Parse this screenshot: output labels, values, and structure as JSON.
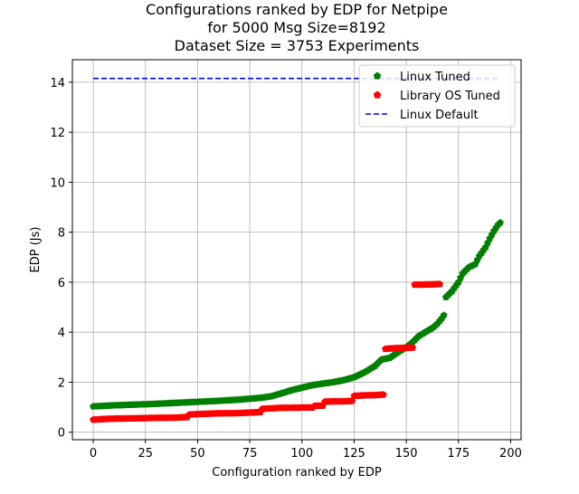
{
  "chart_data": {
    "type": "scatter",
    "title_lines": [
      "Configurations ranked by EDP for Netpipe",
      "for 5000 Msg Size=8192",
      "Dataset Size = 3753 Experiments"
    ],
    "xlabel": "Configuration ranked by EDP",
    "ylabel": "EDP (Js)",
    "xlim": [
      -10,
      205
    ],
    "ylim": [
      -0.3,
      14.9
    ],
    "xticks": [
      0,
      25,
      50,
      75,
      100,
      125,
      150,
      175,
      200
    ],
    "yticks": [
      0,
      2,
      4,
      6,
      8,
      10,
      12,
      14
    ],
    "grid": true,
    "legend_position": "top-right",
    "series": [
      {
        "name": "Linux Tuned",
        "color": "#008000",
        "marker": "pentagon",
        "points": [
          [
            0,
            1.03
          ],
          [
            10,
            1.07
          ],
          [
            20,
            1.1
          ],
          [
            30,
            1.13
          ],
          [
            40,
            1.17
          ],
          [
            50,
            1.21
          ],
          [
            60,
            1.25
          ],
          [
            70,
            1.3
          ],
          [
            80,
            1.37
          ],
          [
            85,
            1.43
          ],
          [
            90,
            1.55
          ],
          [
            95,
            1.68
          ],
          [
            100,
            1.78
          ],
          [
            105,
            1.88
          ],
          [
            110,
            1.94
          ],
          [
            115,
            2.0
          ],
          [
            120,
            2.08
          ],
          [
            125,
            2.2
          ],
          [
            130,
            2.4
          ],
          [
            135,
            2.65
          ],
          [
            138,
            2.9
          ],
          [
            142,
            2.97
          ],
          [
            146,
            3.2
          ],
          [
            150,
            3.4
          ],
          [
            153,
            3.6
          ],
          [
            156,
            3.85
          ],
          [
            160,
            4.05
          ],
          [
            163,
            4.2
          ],
          [
            165,
            4.35
          ],
          [
            167,
            4.55
          ],
          [
            168,
            4.68
          ],
          [
            169,
            5.4
          ],
          [
            172,
            5.65
          ],
          [
            175,
            6.0
          ],
          [
            177,
            6.35
          ],
          [
            180,
            6.6
          ],
          [
            183,
            6.72
          ],
          [
            185,
            7.05
          ],
          [
            188,
            7.4
          ],
          [
            190,
            7.75
          ],
          [
            192,
            8.05
          ],
          [
            194,
            8.3
          ],
          [
            195,
            8.38
          ]
        ]
      },
      {
        "name": "Library OS Tuned",
        "color": "#ff0000",
        "marker": "pentagon",
        "points": [
          [
            0,
            0.5
          ],
          [
            10,
            0.54
          ],
          [
            20,
            0.55
          ],
          [
            30,
            0.57
          ],
          [
            40,
            0.58
          ],
          [
            45,
            0.6
          ],
          [
            46,
            0.7
          ],
          [
            50,
            0.72
          ],
          [
            60,
            0.75
          ],
          [
            70,
            0.76
          ],
          [
            80,
            0.8
          ],
          [
            81,
            0.93
          ],
          [
            90,
            0.97
          ],
          [
            100,
            0.98
          ],
          [
            105,
            0.98
          ],
          [
            106,
            1.05
          ],
          [
            110,
            1.06
          ],
          [
            111,
            1.22
          ],
          [
            115,
            1.23
          ],
          [
            120,
            1.23
          ],
          [
            124,
            1.25
          ],
          [
            125,
            1.45
          ],
          [
            130,
            1.47
          ],
          [
            135,
            1.48
          ],
          [
            139,
            1.5
          ],
          [
            140,
            3.33
          ],
          [
            145,
            3.36
          ],
          [
            150,
            3.37
          ],
          [
            153,
            3.38
          ],
          [
            154,
            5.9
          ],
          [
            158,
            5.9
          ],
          [
            162,
            5.91
          ],
          [
            166,
            5.92
          ]
        ]
      },
      {
        "name": "Linux Default",
        "color": "#0000ff",
        "style": "dashed-line",
        "points": [
          [
            0,
            14.15
          ],
          [
            195,
            14.15
          ]
        ]
      }
    ]
  }
}
